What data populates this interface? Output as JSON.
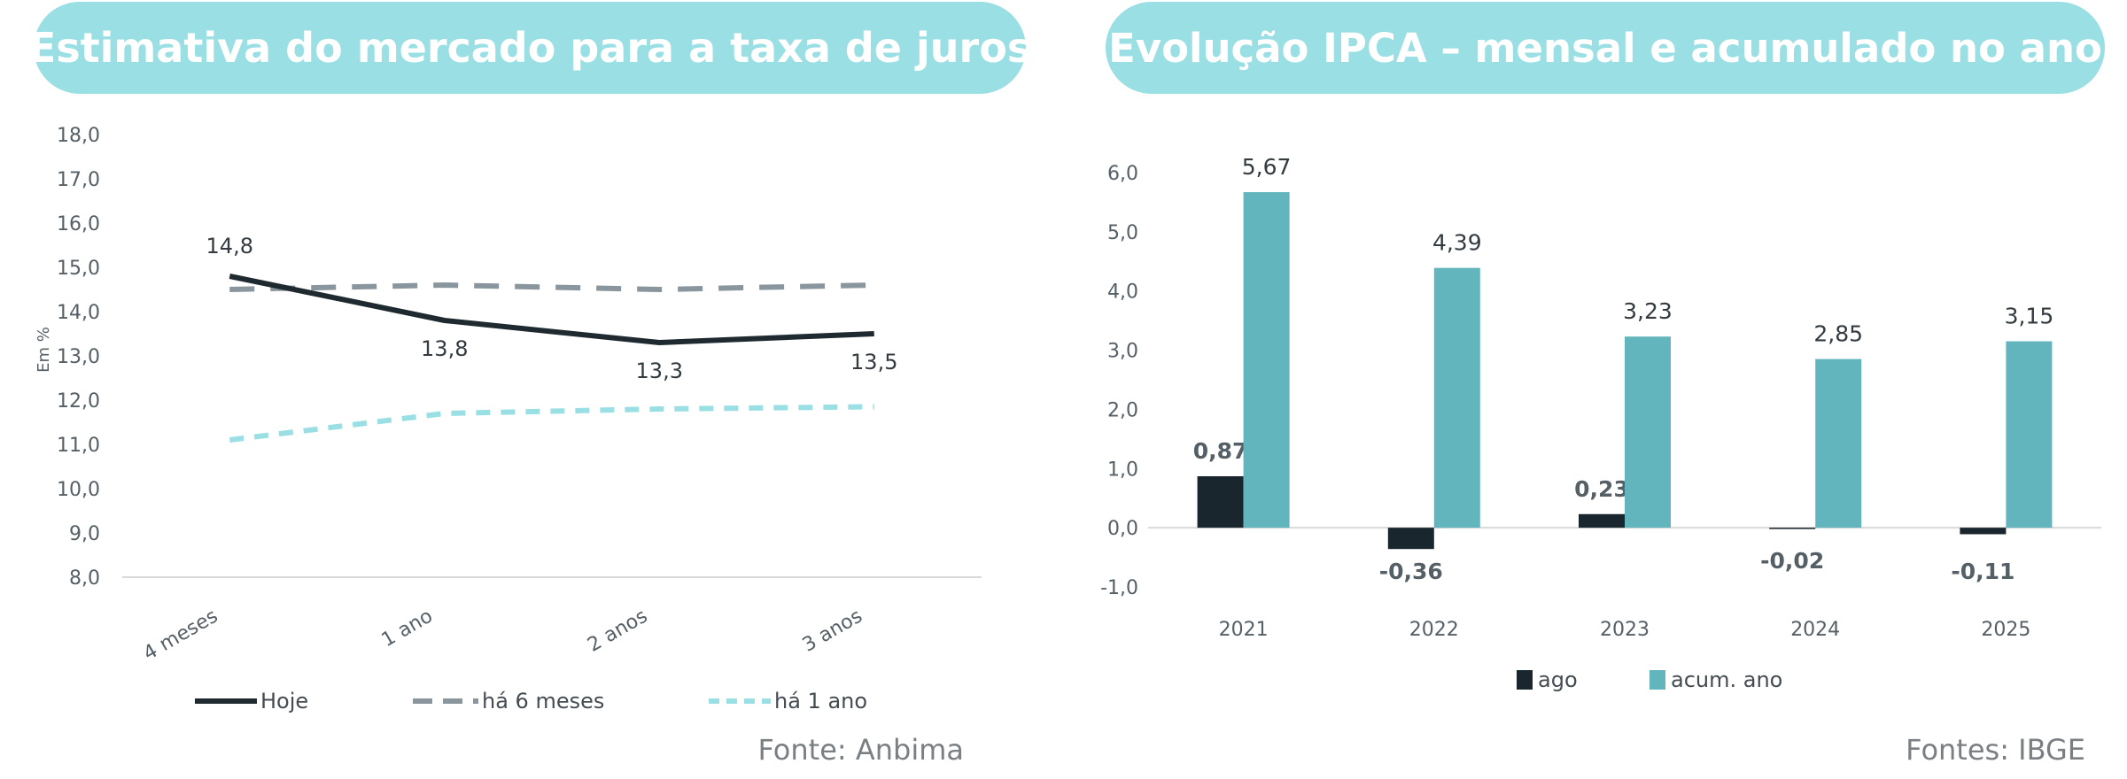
{
  "colors": {
    "banner": "#9adfe4",
    "hoje": "#1f2a30",
    "ha6": "#8a969d",
    "ha1": "#9adfe4",
    "ago": "#1a262d",
    "acum": "#62b5bc",
    "axis": "#d9d9d9"
  },
  "chart_data": [
    {
      "type": "line",
      "title": "Estimativa do mercado para a taxa de juros",
      "ylabel": "Em %",
      "categories": [
        "4 meses",
        "1 ano",
        "2 anos",
        "3 anos"
      ],
      "ylim": [
        8.0,
        18.0
      ],
      "yticks": [
        "18,0",
        "17,0",
        "16,0",
        "15,0",
        "14,0",
        "13,0",
        "12,0",
        "11,0",
        "10,0",
        "9,0",
        "8,0"
      ],
      "series": [
        {
          "name": "Hoje",
          "values": [
            14.8,
            13.8,
            13.3,
            13.5
          ],
          "labels": [
            "14,8",
            "13,8",
            "13,3",
            "13,5"
          ]
        },
        {
          "name": "há 6 meses",
          "values": [
            14.5,
            14.6,
            14.5,
            14.6
          ]
        },
        {
          "name": "há 1 ano",
          "values": [
            11.1,
            11.7,
            11.8,
            11.85
          ]
        }
      ],
      "legend": "bottom",
      "source": "Fonte: Anbima"
    },
    {
      "type": "bar",
      "title": "Evolução IPCA – mensal e acumulado no ano",
      "categories": [
        "2021",
        "2022",
        "2023",
        "2024",
        "2025"
      ],
      "ylim": [
        -1.0,
        6.0
      ],
      "yticks": [
        "6,0",
        "5,0",
        "4,0",
        "3,0",
        "2,0",
        "1,0",
        "0,0",
        "-1,0"
      ],
      "series": [
        {
          "name": "ago",
          "values": [
            0.87,
            -0.36,
            0.23,
            -0.02,
            -0.11
          ],
          "labels": [
            "0,87",
            "-0,36",
            "0,23",
            "-0,02",
            "-0,11"
          ]
        },
        {
          "name": "acum. ano",
          "values": [
            5.67,
            4.39,
            3.23,
            2.85,
            3.15
          ],
          "labels": [
            "5,67",
            "4,39",
            "3,23",
            "2,85",
            "3,15"
          ]
        }
      ],
      "legend": "bottom",
      "source": "Fontes: IBGE"
    }
  ]
}
